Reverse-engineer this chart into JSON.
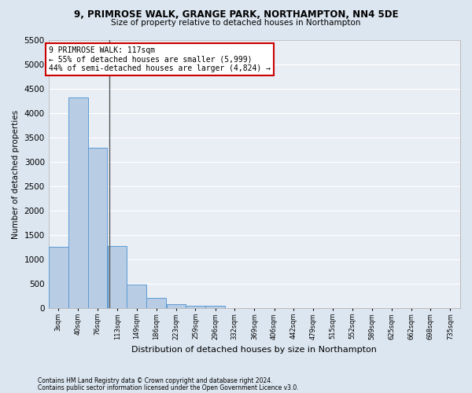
{
  "title1": "9, PRIMROSE WALK, GRANGE PARK, NORTHAMPTON, NN4 5DE",
  "title2": "Size of property relative to detached houses in Northampton",
  "xlabel": "Distribution of detached houses by size in Northampton",
  "ylabel": "Number of detached properties",
  "footer1": "Contains HM Land Registry data © Crown copyright and database right 2024.",
  "footer2": "Contains public sector information licensed under the Open Government Licence v3.0.",
  "annotation_line1": "9 PRIMROSE WALK: 117sqm",
  "annotation_line2": "← 55% of detached houses are smaller (5,999)",
  "annotation_line3": "44% of semi-detached houses are larger (4,824) →",
  "property_size": 117,
  "categories": [
    "3sqm",
    "40sqm",
    "76sqm",
    "113sqm",
    "149sqm",
    "186sqm",
    "223sqm",
    "259sqm",
    "296sqm",
    "332sqm",
    "369sqm",
    "406sqm",
    "442sqm",
    "479sqm",
    "515sqm",
    "552sqm",
    "589sqm",
    "625sqm",
    "662sqm",
    "698sqm",
    "735sqm"
  ],
  "bin_edges": [
    3,
    40,
    76,
    113,
    149,
    186,
    223,
    259,
    296,
    332,
    369,
    406,
    442,
    479,
    515,
    552,
    589,
    625,
    662,
    698,
    735
  ],
  "values": [
    1270,
    4330,
    3290,
    1280,
    480,
    210,
    90,
    60,
    50,
    0,
    0,
    0,
    0,
    0,
    0,
    0,
    0,
    0,
    0,
    0
  ],
  "bar_color": "#b8cce4",
  "bar_edge_color": "#5b9bd5",
  "vline_color": "#555555",
  "annotation_box_color": "#cc0000",
  "bg_color": "#dce6f0",
  "plot_bg_color": "#e9eef5",
  "grid_color": "#ffffff",
  "ylim": [
    0,
    5500
  ],
  "yticks": [
    0,
    500,
    1000,
    1500,
    2000,
    2500,
    3000,
    3500,
    4000,
    4500,
    5000,
    5500
  ]
}
